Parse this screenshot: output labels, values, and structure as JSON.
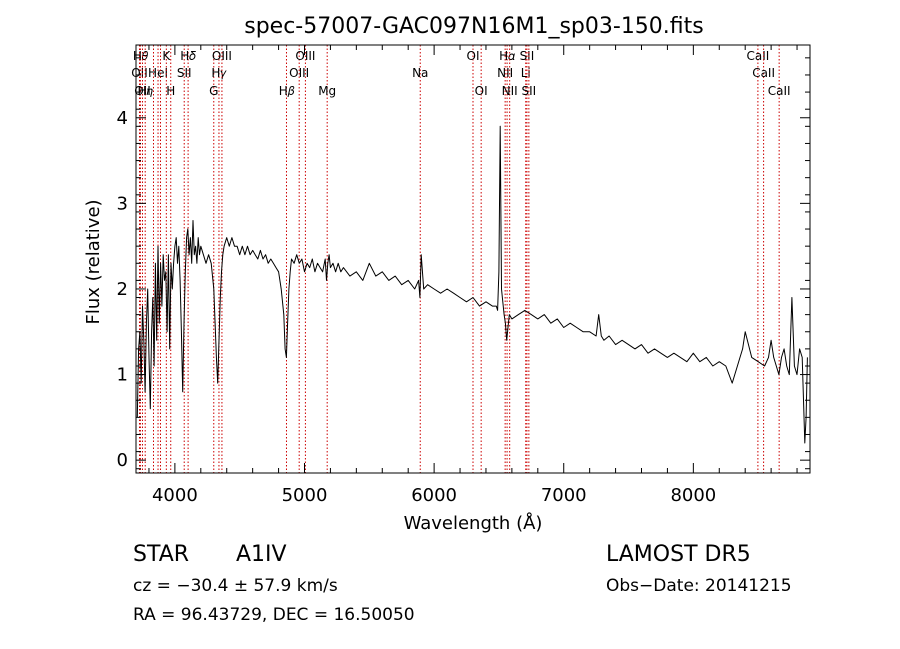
{
  "chart_data": {
    "type": "line",
    "title": "spec-57007-GAC097N16M1_sp03-150.fits",
    "xlabel": "Wavelength (Å)",
    "ylabel": "Flux (relative)",
    "xlim": [
      3700,
      8900
    ],
    "ylim": [
      -0.15,
      4.85
    ],
    "xticks": [
      4000,
      5000,
      6000,
      7000,
      8000
    ],
    "xtick_labels": [
      "4000",
      "5000",
      "6000",
      "7000",
      "8000"
    ],
    "yticks": [
      0,
      1,
      2,
      3,
      4
    ],
    "ytick_labels": [
      "0",
      "1",
      "2",
      "3",
      "4"
    ],
    "grid": false,
    "line_color": "#000000",
    "marker_color": "#cc0000",
    "spectrum": {
      "x": [
        3710,
        3720,
        3730,
        3740,
        3750,
        3760,
        3770,
        3780,
        3790,
        3800,
        3810,
        3820,
        3830,
        3840,
        3850,
        3860,
        3870,
        3880,
        3890,
        3900,
        3910,
        3920,
        3930,
        3940,
        3950,
        3960,
        3970,
        3980,
        3990,
        4000,
        4010,
        4020,
        4030,
        4040,
        4050,
        4060,
        4070,
        4080,
        4090,
        4100,
        4110,
        4120,
        4130,
        4140,
        4150,
        4160,
        4170,
        4180,
        4190,
        4200,
        4220,
        4240,
        4260,
        4280,
        4300,
        4310,
        4320,
        4330,
        4340,
        4350,
        4360,
        4370,
        4380,
        4400,
        4420,
        4440,
        4460,
        4480,
        4500,
        4520,
        4540,
        4560,
        4580,
        4600,
        4620,
        4640,
        4660,
        4680,
        4700,
        4720,
        4740,
        4760,
        4780,
        4800,
        4820,
        4840,
        4850,
        4860,
        4870,
        4880,
        4890,
        4900,
        4920,
        4940,
        4960,
        4980,
        5000,
        5020,
        5040,
        5060,
        5080,
        5100,
        5120,
        5140,
        5160,
        5170,
        5180,
        5190,
        5200,
        5220,
        5240,
        5260,
        5280,
        5300,
        5350,
        5400,
        5450,
        5500,
        5550,
        5600,
        5650,
        5700,
        5750,
        5800,
        5850,
        5880,
        5890,
        5900,
        5920,
        5950,
        6000,
        6050,
        6100,
        6150,
        6200,
        6250,
        6300,
        6350,
        6400,
        6450,
        6480,
        6490,
        6500,
        6510,
        6520,
        6540,
        6550,
        6560,
        6570,
        6580,
        6600,
        6650,
        6700,
        6750,
        6800,
        6850,
        6900,
        6950,
        7000,
        7050,
        7100,
        7150,
        7200,
        7250,
        7270,
        7290,
        7310,
        7350,
        7400,
        7450,
        7500,
        7550,
        7600,
        7650,
        7700,
        7750,
        7800,
        7850,
        7900,
        7950,
        8000,
        8050,
        8100,
        8150,
        8200,
        8250,
        8300,
        8340,
        8360,
        8380,
        8400,
        8450,
        8500,
        8550,
        8580,
        8600,
        8620,
        8640,
        8660,
        8680,
        8700,
        8720,
        8740,
        8760,
        8780,
        8800,
        8820,
        8840,
        8860,
        8870,
        8880
      ],
      "y": [
        0.5,
        1.3,
        1.5,
        0.9,
        1.8,
        1.4,
        0.8,
        1.6,
        2.0,
        1.2,
        0.6,
        1.5,
        1.9,
        1.1,
        2.3,
        1.4,
        2.5,
        1.6,
        2.3,
        1.8,
        2.4,
        2.1,
        2.2,
        1.5,
        2.4,
        1.3,
        2.3,
        2.0,
        2.3,
        2.5,
        2.6,
        2.3,
        2.5,
        2.1,
        1.5,
        0.8,
        1.6,
        2.2,
        2.6,
        2.7,
        2.4,
        2.6,
        2.3,
        2.8,
        2.4,
        2.5,
        2.3,
        2.6,
        2.4,
        2.5,
        2.4,
        2.3,
        2.4,
        2.3,
        2.0,
        1.6,
        1.2,
        0.9,
        1.4,
        1.9,
        2.2,
        2.4,
        2.5,
        2.6,
        2.5,
        2.6,
        2.5,
        2.5,
        2.4,
        2.5,
        2.4,
        2.5,
        2.4,
        2.45,
        2.4,
        2.35,
        2.45,
        2.35,
        2.4,
        2.3,
        2.35,
        2.3,
        2.25,
        2.2,
        2.0,
        1.7,
        1.3,
        1.2,
        1.6,
        2.0,
        2.2,
        2.35,
        2.3,
        2.4,
        2.3,
        2.35,
        2.2,
        2.3,
        2.25,
        2.35,
        2.2,
        2.3,
        2.25,
        2.2,
        2.35,
        2.1,
        2.3,
        2.4,
        2.25,
        2.3,
        2.2,
        2.3,
        2.2,
        2.25,
        2.15,
        2.2,
        2.1,
        2.3,
        2.15,
        2.2,
        2.1,
        2.15,
        2.05,
        2.1,
        2.0,
        2.1,
        1.9,
        2.4,
        2.0,
        2.05,
        2.0,
        1.95,
        2.0,
        1.95,
        1.9,
        1.85,
        1.9,
        1.8,
        1.85,
        1.8,
        1.8,
        1.75,
        2.2,
        3.9,
        2.0,
        1.7,
        1.6,
        1.4,
        1.55,
        1.7,
        1.65,
        1.7,
        1.75,
        1.7,
        1.65,
        1.7,
        1.6,
        1.65,
        1.55,
        1.6,
        1.55,
        1.5,
        1.5,
        1.45,
        1.7,
        1.45,
        1.4,
        1.45,
        1.35,
        1.4,
        1.35,
        1.3,
        1.35,
        1.25,
        1.3,
        1.25,
        1.2,
        1.25,
        1.2,
        1.15,
        1.25,
        1.15,
        1.2,
        1.1,
        1.15,
        1.1,
        0.9,
        1.1,
        1.2,
        1.3,
        1.5,
        1.2,
        1.15,
        1.1,
        1.2,
        1.4,
        1.2,
        1.1,
        1.0,
        1.2,
        1.3,
        1.1,
        1.0,
        1.9,
        1.1,
        1.0,
        1.3,
        1.2,
        0.2,
        0.5,
        1.2
      ]
    },
    "line_markers": [
      {
        "wavelength": 3734,
        "row": 1,
        "label": "H𝜃"
      },
      {
        "wavelength": 3727,
        "row": 2,
        "label": "OII"
      },
      {
        "wavelength": 3750,
        "row": 3,
        "label": "OII"
      },
      {
        "wavelength": 3771,
        "row": 3,
        "label": "H𝜂"
      },
      {
        "wavelength": 3835,
        "row": 0,
        "label": ""
      },
      {
        "wavelength": 3870,
        "row": 2,
        "label": "HeI"
      },
      {
        "wavelength": 3889,
        "row": 0,
        "label": ""
      },
      {
        "wavelength": 3934,
        "row": 1,
        "label": "K"
      },
      {
        "wavelength": 3968,
        "row": 3,
        "label": "H"
      },
      {
        "wavelength": 4102,
        "row": 1,
        "label": "H𝛿"
      },
      {
        "wavelength": 4072,
        "row": 2,
        "label": "SII"
      },
      {
        "wavelength": 4300,
        "row": 3,
        "label": "G"
      },
      {
        "wavelength": 4340,
        "row": 2,
        "label": "H𝛾"
      },
      {
        "wavelength": 4363,
        "row": 1,
        "label": "OIII"
      },
      {
        "wavelength": 4861,
        "row": 3,
        "label": "H𝛽"
      },
      {
        "wavelength": 4959,
        "row": 2,
        "label": "OIII"
      },
      {
        "wavelength": 5007,
        "row": 1,
        "label": "OIII"
      },
      {
        "wavelength": 5175,
        "row": 3,
        "label": "Mg"
      },
      {
        "wavelength": 5893,
        "row": 2,
        "label": "Na"
      },
      {
        "wavelength": 6300,
        "row": 1,
        "label": "OI"
      },
      {
        "wavelength": 6363,
        "row": 3,
        "label": "OI"
      },
      {
        "wavelength": 6548,
        "row": 2,
        "label": "NII"
      },
      {
        "wavelength": 6563,
        "row": 1,
        "label": "H𝛼"
      },
      {
        "wavelength": 6583,
        "row": 3,
        "label": "NII"
      },
      {
        "wavelength": 6707,
        "row": 2,
        "label": "Li"
      },
      {
        "wavelength": 6716,
        "row": 1,
        "label": "SII"
      },
      {
        "wavelength": 6731,
        "row": 3,
        "label": "SII"
      },
      {
        "wavelength": 8498,
        "row": 1,
        "label": "CaII"
      },
      {
        "wavelength": 8542,
        "row": 2,
        "label": "CaII"
      },
      {
        "wavelength": 8662,
        "row": 3,
        "label": "CaII"
      }
    ]
  },
  "info": {
    "object_class": "STAR",
    "subclass": "A1IV",
    "survey": "LAMOST DR5",
    "redshift": "cz = −30.4 ± 57.9 km/s",
    "obs_date": "Obs−Date: 20141215",
    "coords": "RA =  96.43729, DEC =  16.50050"
  }
}
